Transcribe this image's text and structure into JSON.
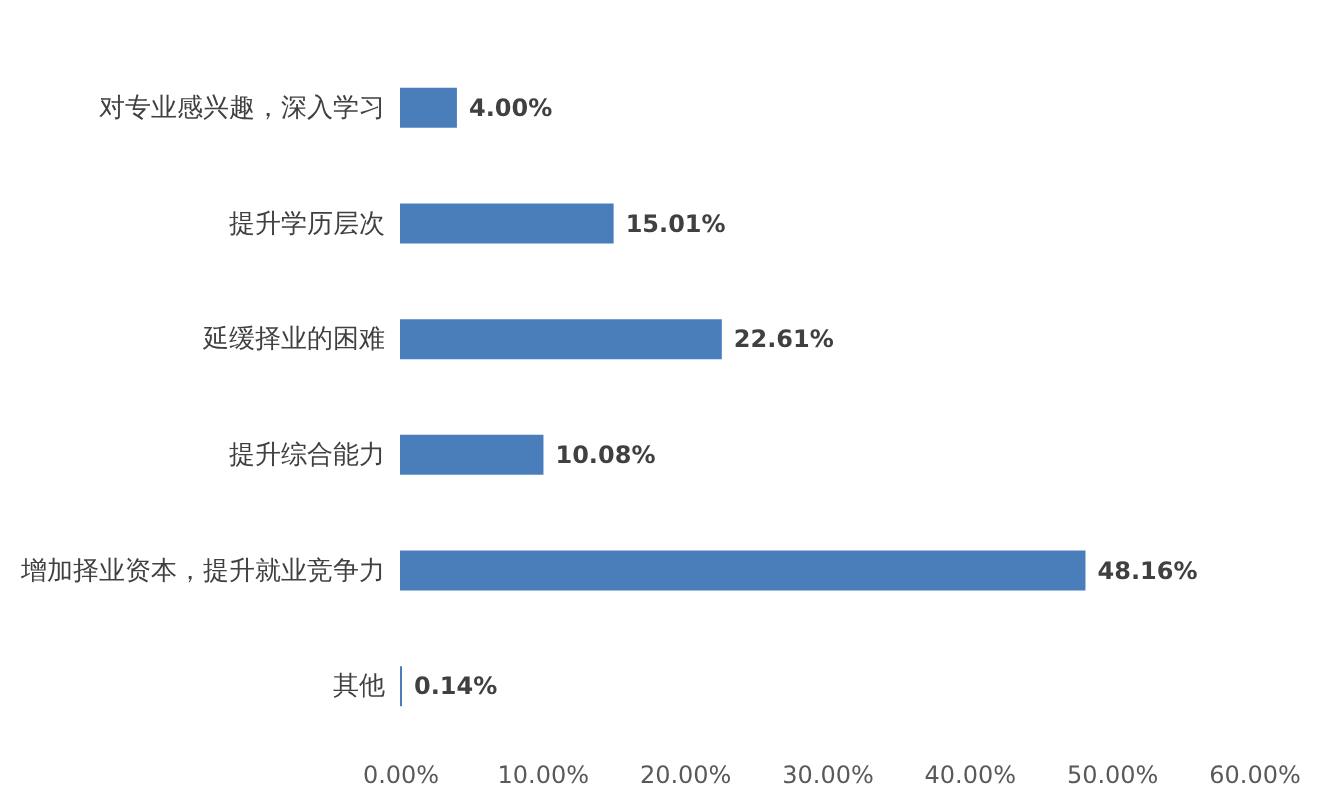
{
  "chart_data": {
    "type": "bar",
    "orientation": "horizontal",
    "categories": [
      "对专业感兴趣，深入学习",
      "提升学历层次",
      "延缓择业的困难",
      "提升综合能力",
      "增加择业资本，提升就业竞争力",
      "其他"
    ],
    "values": [
      4.0,
      15.01,
      22.61,
      10.08,
      48.16,
      0.14
    ],
    "value_labels": [
      "4.00%",
      "15.01%",
      "22.61%",
      "10.08%",
      "48.16%",
      "0.14%"
    ],
    "color": "#4a7ebb",
    "xlim": [
      0,
      60
    ],
    "xticks": [
      {
        "value": 0,
        "label": "0.00%"
      },
      {
        "value": 10,
        "label": "10.00%"
      },
      {
        "value": 20,
        "label": "20.00%"
      },
      {
        "value": 30,
        "label": "30.00%"
      },
      {
        "value": 40,
        "label": "40.00%"
      },
      {
        "value": 50,
        "label": "50.00%"
      },
      {
        "value": 60,
        "label": "60.00%"
      }
    ],
    "grid": false
  }
}
